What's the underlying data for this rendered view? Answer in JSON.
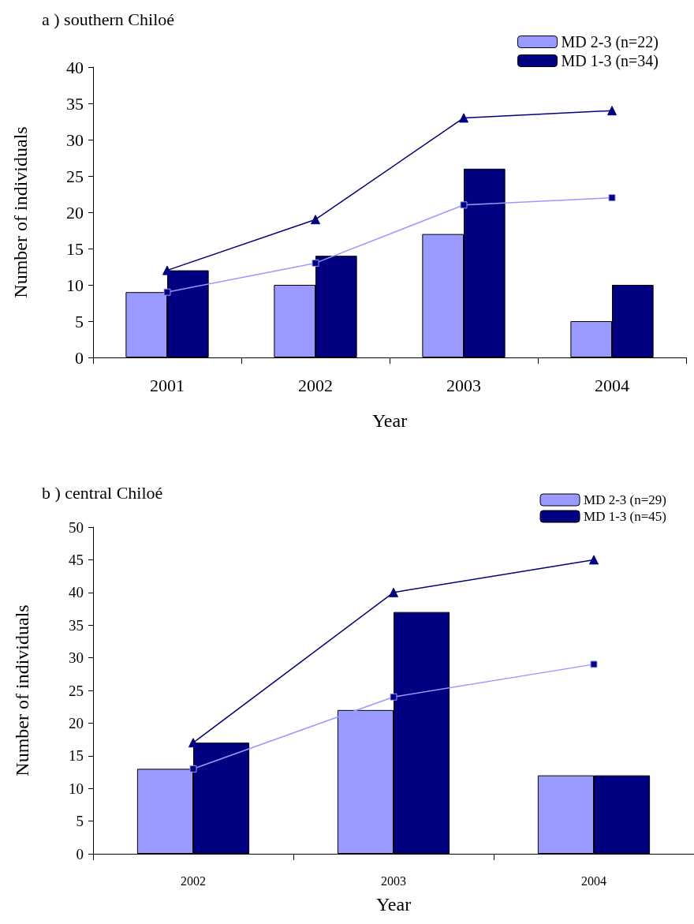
{
  "chart_data": [
    {
      "type": "bar",
      "title": "a ) southern Chiloé",
      "xlabel": "Year",
      "ylabel": "Number of individuals",
      "categories": [
        "2001",
        "2002",
        "2003",
        "2004"
      ],
      "series": [
        {
          "name": "MD 2-3 (n=22)",
          "color": "#9999ff",
          "values": [
            9,
            10,
            17,
            5
          ]
        },
        {
          "name": "MD 1-3 (n=34)",
          "color": "#000080",
          "values": [
            12,
            14,
            26,
            10
          ]
        },
        {
          "type": "line",
          "color": "#9999ff",
          "marker": "square",
          "values": [
            9,
            13,
            21,
            22
          ]
        },
        {
          "type": "line",
          "color": "#000080",
          "marker": "triangle",
          "values": [
            12,
            19,
            33,
            34
          ]
        }
      ],
      "ylim": [
        0,
        40
      ],
      "yticks": [
        0,
        5,
        10,
        15,
        20,
        25,
        30,
        35,
        40
      ],
      "legend": "top right"
    },
    {
      "type": "bar",
      "title": "b ) central Chiloé",
      "xlabel": "Year",
      "ylabel": "Number of individuals",
      "categories": [
        "2002",
        "2003",
        "2004"
      ],
      "series": [
        {
          "name": "MD 2-3 (n=29)",
          "color": "#9999ff",
          "values": [
            13,
            22,
            12
          ]
        },
        {
          "name": "MD 1-3 (n=45)",
          "color": "#000080",
          "values": [
            17,
            37,
            12
          ]
        },
        {
          "type": "line",
          "color": "#9999ff",
          "marker": "square",
          "values": [
            13,
            24,
            29
          ]
        },
        {
          "type": "line",
          "color": "#000080",
          "marker": "triangle",
          "values": [
            17,
            40,
            45
          ]
        }
      ],
      "ylim": [
        0,
        50
      ],
      "yticks": [
        0,
        5,
        10,
        15,
        20,
        25,
        30,
        35,
        40,
        45,
        50
      ],
      "legend": "top right"
    }
  ]
}
